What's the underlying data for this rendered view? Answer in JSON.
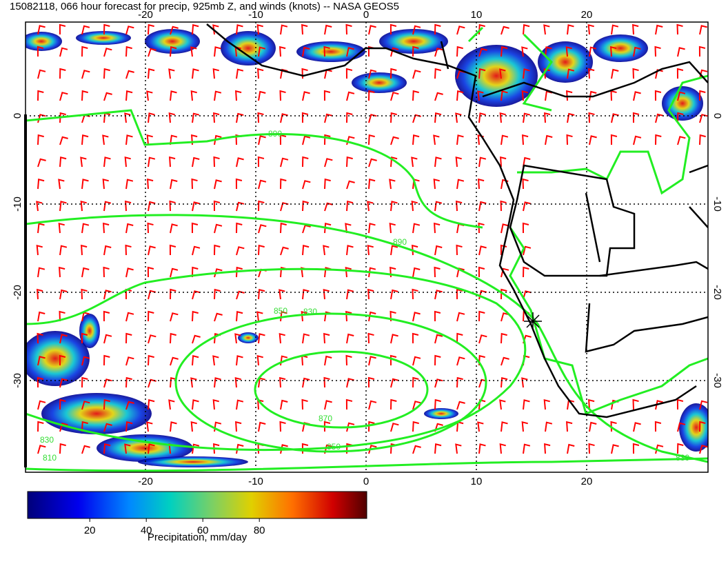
{
  "title": "15082118, 066 hour forecast for precip, 925mb Z, and winds (knots) -- NASA GEOS5",
  "map": {
    "lon_ticks": [
      -20,
      -10,
      0,
      10,
      20
    ],
    "lat_ticks": [
      0,
      -10,
      -20,
      -30
    ],
    "contour_labels": [
      "850",
      "830",
      "870",
      "850",
      "890",
      "810",
      "830",
      "890",
      "830"
    ]
  },
  "colorbar": {
    "ticks": [
      20,
      40,
      60,
      80
    ],
    "range": [
      -2,
      118
    ],
    "label": "Precipitation, mm/day"
  }
}
